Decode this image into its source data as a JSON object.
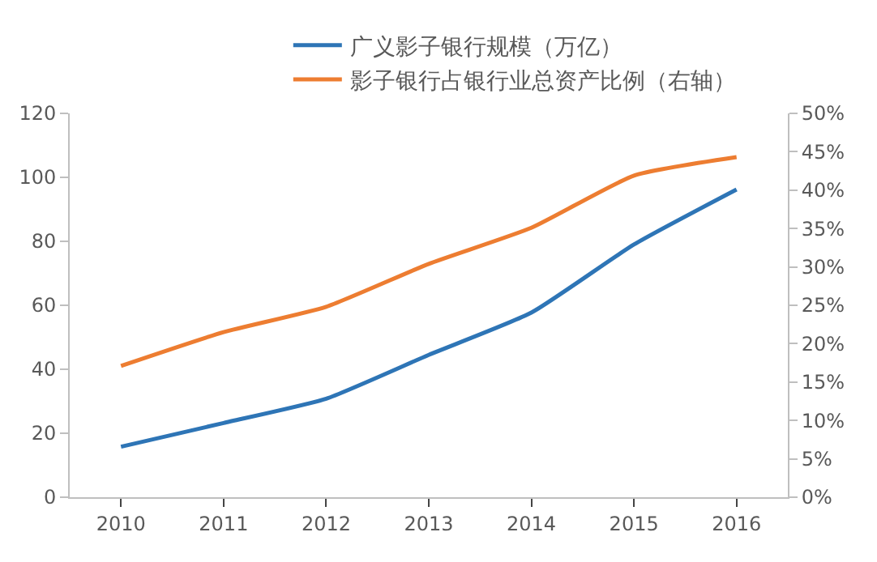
{
  "chart_data": {
    "type": "line",
    "categories": [
      "2010",
      "2011",
      "2012",
      "2013",
      "2014",
      "2015",
      "2016"
    ],
    "series": [
      {
        "name": "广义影子银行规模（万亿）",
        "color": "#2e75b6",
        "values": [
          15.8,
          23.2,
          30.8,
          44.5,
          57.7,
          79,
          96.2
        ]
      },
      {
        "name": "影子银行占银行业总资产比例（右轴）",
        "color": "#ed7d31",
        "axis": "y2",
        "values": [
          17.1,
          21.5,
          24.8,
          30.4,
          35.1,
          41.9,
          44.3
        ]
      }
    ],
    "ylim": [
      0,
      120
    ],
    "yticks": [
      0,
      20,
      40,
      60,
      80,
      100,
      120
    ],
    "y2lim": [
      0,
      50
    ],
    "y2ticks": [
      {
        "value": 0,
        "label": "0%"
      },
      {
        "value": 5,
        "label": "5%"
      },
      {
        "value": 10,
        "label": "10%"
      },
      {
        "value": 15,
        "label": "15%"
      },
      {
        "value": 20,
        "label": "20%"
      },
      {
        "value": 25,
        "label": "25%"
      },
      {
        "value": 30,
        "label": "30%"
      },
      {
        "value": 35,
        "label": "35%"
      },
      {
        "value": 40,
        "label": "40%"
      },
      {
        "value": 45,
        "label": "45%"
      },
      {
        "value": 50,
        "label": "50%"
      }
    ],
    "legend": "top",
    "marker": "none",
    "line_style": "solid"
  }
}
